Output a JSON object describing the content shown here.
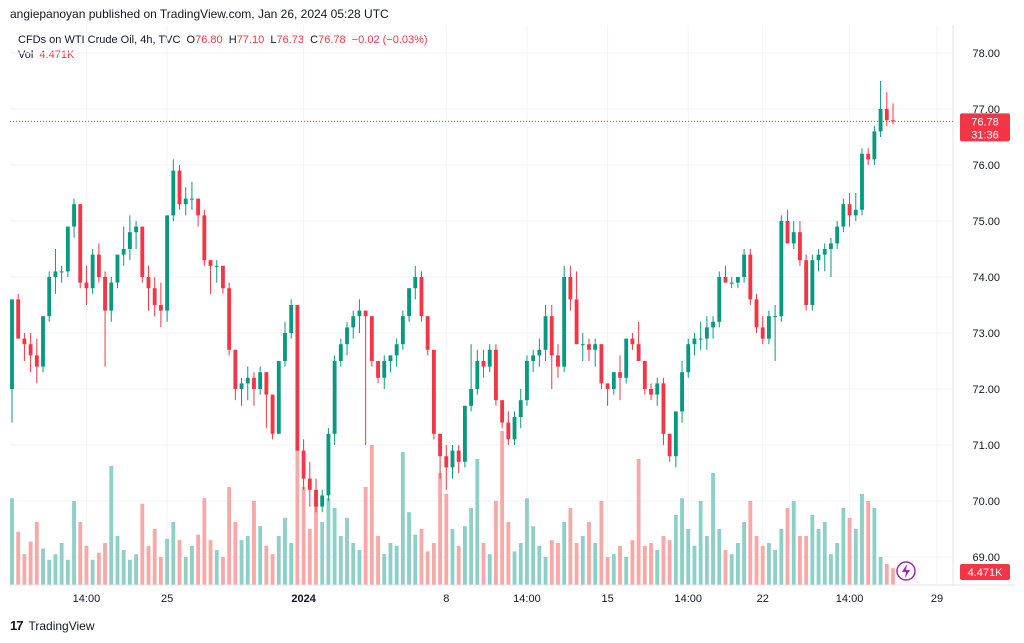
{
  "header": {
    "published": "angiepanoyan published on TradingView.com, Jan 26, 2024 05:28 UTC"
  },
  "legend": {
    "symbol": "CFDs on WTI Crude Oil, 4h, TVC",
    "o_label": "O",
    "o_value": "76.80",
    "h_label": "H",
    "h_value": "77.10",
    "l_label": "L",
    "l_value": "76.73",
    "c_label": "C",
    "c_value": "76.78",
    "change": "−0.02 (−0.03%)",
    "vol_label": "Vol",
    "vol_value": "4.471K"
  },
  "footer": {
    "brand": "TradingView"
  },
  "colors": {
    "up": "#089981",
    "down": "#f23645",
    "upVol": "#8ed0c7",
    "downVol": "#f7a9a7",
    "grid": "#f0f3fa"
  },
  "chart_data": {
    "type": "candlestick",
    "title": "CFDs on WTI Crude Oil, 4h, TVC",
    "ylim": [
      68.5,
      78.5
    ],
    "y_ticks": [
      "78.00",
      "77.00",
      "76.00",
      "75.00",
      "74.00",
      "73.00",
      "72.00",
      "71.00",
      "70.00",
      "69.00"
    ],
    "x_ticks": [
      "14:00",
      "25",
      "2024",
      "8",
      "14:00",
      "15",
      "14:00",
      "22",
      "14:00",
      "29"
    ],
    "last_price": "76.78",
    "countdown": "31:36",
    "volume_label": "4.471K",
    "candles": [
      [
        72.0,
        73.6,
        71.4,
        73.6,
        0.62
      ],
      [
        73.6,
        73.7,
        72.9,
        72.9,
        0.38
      ],
      [
        72.9,
        73.0,
        72.5,
        72.8,
        0.22
      ],
      [
        72.8,
        73.0,
        72.3,
        72.6,
        0.31
      ],
      [
        72.6,
        72.9,
        72.1,
        72.4,
        0.45
      ],
      [
        72.4,
        73.3,
        72.3,
        73.3,
        0.26
      ],
      [
        73.3,
        74.1,
        73.2,
        74.0,
        0.18
      ],
      [
        74.0,
        74.5,
        73.7,
        74.1,
        0.22
      ],
      [
        74.1,
        74.2,
        73.9,
        74.1,
        0.3
      ],
      [
        74.1,
        74.9,
        74.0,
        74.9,
        0.18
      ],
      [
        74.9,
        75.4,
        74.7,
        75.3,
        0.6
      ],
      [
        75.3,
        75.3,
        73.8,
        73.9,
        0.45
      ],
      [
        73.9,
        74.2,
        73.5,
        73.8,
        0.28
      ],
      [
        73.8,
        74.5,
        73.7,
        74.4,
        0.18
      ],
      [
        74.4,
        74.6,
        73.9,
        74.0,
        0.23
      ],
      [
        74.0,
        74.1,
        72.4,
        73.4,
        0.3
      ],
      [
        73.4,
        74.0,
        73.2,
        73.9,
        0.85
      ],
      [
        73.9,
        74.4,
        73.8,
        74.4,
        0.35
      ],
      [
        74.4,
        74.9,
        74.2,
        74.5,
        0.25
      ],
      [
        74.5,
        75.1,
        74.3,
        74.8,
        0.18
      ],
      [
        74.8,
        75.0,
        74.5,
        74.9,
        0.22
      ],
      [
        74.9,
        74.9,
        73.9,
        74.0,
        0.58
      ],
      [
        74.0,
        74.2,
        73.4,
        73.8,
        0.28
      ],
      [
        73.8,
        74.0,
        73.3,
        73.5,
        0.4
      ],
      [
        73.5,
        73.9,
        73.1,
        73.4,
        0.2
      ],
      [
        73.4,
        75.1,
        73.2,
        75.1,
        0.33
      ],
      [
        75.1,
        76.1,
        75.0,
        75.9,
        0.45
      ],
      [
        75.9,
        76.0,
        75.2,
        75.3,
        0.32
      ],
      [
        75.3,
        75.6,
        75.1,
        75.4,
        0.2
      ],
      [
        75.4,
        75.7,
        75.2,
        75.4,
        0.28
      ],
      [
        75.4,
        75.4,
        74.9,
        75.1,
        0.36
      ],
      [
        75.1,
        75.2,
        74.2,
        74.3,
        0.62
      ],
      [
        74.3,
        74.3,
        73.7,
        74.2,
        0.32
      ],
      [
        74.2,
        74.3,
        73.9,
        74.2,
        0.25
      ],
      [
        74.2,
        74.2,
        73.7,
        73.8,
        0.2
      ],
      [
        73.8,
        73.9,
        72.6,
        72.7,
        0.7
      ],
      [
        72.7,
        72.7,
        71.8,
        72.0,
        0.45
      ],
      [
        72.0,
        72.2,
        71.7,
        72.1,
        0.32
      ],
      [
        72.1,
        72.4,
        71.8,
        72.2,
        0.35
      ],
      [
        72.2,
        72.3,
        71.7,
        72.0,
        0.6
      ],
      [
        72.0,
        72.4,
        71.9,
        72.3,
        0.42
      ],
      [
        72.3,
        72.3,
        71.3,
        71.9,
        0.28
      ],
      [
        71.9,
        71.9,
        71.1,
        71.2,
        0.22
      ],
      [
        71.2,
        72.5,
        71.2,
        72.5,
        0.35
      ],
      [
        72.5,
        73.2,
        72.4,
        73.0,
        0.48
      ],
      [
        73.0,
        73.6,
        72.9,
        73.5,
        0.3
      ],
      [
        73.5,
        73.5,
        70.9,
        70.9,
        1.0
      ],
      [
        70.9,
        71.1,
        70.2,
        70.4,
        0.7
      ],
      [
        70.4,
        70.7,
        69.9,
        70.2,
        0.4
      ],
      [
        70.2,
        70.4,
        69.8,
        69.9,
        0.6
      ],
      [
        69.9,
        70.2,
        69.8,
        70.1,
        0.45
      ],
      [
        70.1,
        71.3,
        70.0,
        71.2,
        0.62
      ],
      [
        71.2,
        72.6,
        71.0,
        72.5,
        0.55
      ],
      [
        72.5,
        72.9,
        72.4,
        72.8,
        0.35
      ],
      [
        72.8,
        73.2,
        72.6,
        73.1,
        0.48
      ],
      [
        73.1,
        73.4,
        72.9,
        73.3,
        0.3
      ],
      [
        73.3,
        73.6,
        73.0,
        73.4,
        0.25
      ],
      [
        73.4,
        73.4,
        71.0,
        73.3,
        0.7
      ],
      [
        73.3,
        73.3,
        72.4,
        72.5,
        1.0
      ],
      [
        72.5,
        72.5,
        72.1,
        72.2,
        0.35
      ],
      [
        72.2,
        72.6,
        72.0,
        72.5,
        0.22
      ],
      [
        72.5,
        72.6,
        72.3,
        72.6,
        0.3
      ],
      [
        72.6,
        72.9,
        72.4,
        72.8,
        0.28
      ],
      [
        72.8,
        73.4,
        72.7,
        73.3,
        0.95
      ],
      [
        73.3,
        73.8,
        73.2,
        73.8,
        0.52
      ],
      [
        73.8,
        74.2,
        73.6,
        74.0,
        0.36
      ],
      [
        74.0,
        74.1,
        73.2,
        73.3,
        0.4
      ],
      [
        73.3,
        73.3,
        72.6,
        72.7,
        0.24
      ],
      [
        72.7,
        72.7,
        71.1,
        71.2,
        0.3
      ],
      [
        71.2,
        71.2,
        70.4,
        70.8,
        0.8
      ],
      [
        70.8,
        71.0,
        70.2,
        70.6,
        0.65
      ],
      [
        70.6,
        71.0,
        70.4,
        70.9,
        0.4
      ],
      [
        70.9,
        71.0,
        70.5,
        70.7,
        0.28
      ],
      [
        70.7,
        71.7,
        70.6,
        71.7,
        0.42
      ],
      [
        71.7,
        72.8,
        71.6,
        72.0,
        0.55
      ],
      [
        72.0,
        72.7,
        71.9,
        72.5,
        0.9
      ],
      [
        72.5,
        72.7,
        72.2,
        72.4,
        0.3
      ],
      [
        72.4,
        72.8,
        72.3,
        72.7,
        0.22
      ],
      [
        72.7,
        72.8,
        71.7,
        71.8,
        0.6
      ],
      [
        71.8,
        71.8,
        71.3,
        71.4,
        1.1
      ],
      [
        71.4,
        71.6,
        71.0,
        71.1,
        0.45
      ],
      [
        71.1,
        71.6,
        71.0,
        71.5,
        0.24
      ],
      [
        71.5,
        72.0,
        71.3,
        71.8,
        0.3
      ],
      [
        71.8,
        72.6,
        71.7,
        72.5,
        0.62
      ],
      [
        72.5,
        72.7,
        72.3,
        72.6,
        0.42
      ],
      [
        72.6,
        72.9,
        72.4,
        72.7,
        0.28
      ],
      [
        72.7,
        73.5,
        72.5,
        73.3,
        0.2
      ],
      [
        73.3,
        73.5,
        72.0,
        72.6,
        0.32
      ],
      [
        72.6,
        72.8,
        72.2,
        72.4,
        0.3
      ],
      [
        72.4,
        74.2,
        72.3,
        74.0,
        0.45
      ],
      [
        74.0,
        74.2,
        73.4,
        73.6,
        0.55
      ],
      [
        73.6,
        74.1,
        72.8,
        72.8,
        0.3
      ],
      [
        72.8,
        73.0,
        72.5,
        72.8,
        0.35
      ],
      [
        72.8,
        72.9,
        72.5,
        72.7,
        0.45
      ],
      [
        72.7,
        72.9,
        72.4,
        72.8,
        0.3
      ],
      [
        72.8,
        72.8,
        72.0,
        72.1,
        0.6
      ],
      [
        72.1,
        72.1,
        71.7,
        72.0,
        0.2
      ],
      [
        72.0,
        72.3,
        71.9,
        72.3,
        0.22
      ],
      [
        72.3,
        72.6,
        71.8,
        72.2,
        0.28
      ],
      [
        72.2,
        72.9,
        72.1,
        72.9,
        0.2
      ],
      [
        72.9,
        73.0,
        72.7,
        72.8,
        0.32
      ],
      [
        72.8,
        73.2,
        72.5,
        72.5,
        0.9
      ],
      [
        72.5,
        72.5,
        71.9,
        72.0,
        0.28
      ],
      [
        72.0,
        72.1,
        71.8,
        71.9,
        0.3
      ],
      [
        71.9,
        72.2,
        71.7,
        72.1,
        0.25
      ],
      [
        72.1,
        72.2,
        71.0,
        71.2,
        0.35
      ],
      [
        71.2,
        71.2,
        70.7,
        70.8,
        0.32
      ],
      [
        70.8,
        71.6,
        70.6,
        71.6,
        0.5
      ],
      [
        71.6,
        72.5,
        71.4,
        72.3,
        0.62
      ],
      [
        72.3,
        72.9,
        72.2,
        72.8,
        0.4
      ],
      [
        72.8,
        73.0,
        72.6,
        72.9,
        0.28
      ],
      [
        72.9,
        73.2,
        72.7,
        72.9,
        0.6
      ],
      [
        72.9,
        73.3,
        72.7,
        73.1,
        0.35
      ],
      [
        73.1,
        73.3,
        72.9,
        73.2,
        0.8
      ],
      [
        73.2,
        74.1,
        73.1,
        74.0,
        0.4
      ],
      [
        74.0,
        74.2,
        73.9,
        73.9,
        0.25
      ],
      [
        73.9,
        74.0,
        73.8,
        73.9,
        0.22
      ],
      [
        73.9,
        74.0,
        73.8,
        74.0,
        0.3
      ],
      [
        74.0,
        74.5,
        73.9,
        74.4,
        0.45
      ],
      [
        74.4,
        74.5,
        73.5,
        73.6,
        0.6
      ],
      [
        73.6,
        73.7,
        73.0,
        73.1,
        0.35
      ],
      [
        73.1,
        73.3,
        72.8,
        72.9,
        0.28
      ],
      [
        72.9,
        73.4,
        72.8,
        73.3,
        0.3
      ],
      [
        73.3,
        73.5,
        72.5,
        73.3,
        0.25
      ],
      [
        73.3,
        75.1,
        73.2,
        75.0,
        0.4
      ],
      [
        75.0,
        75.2,
        74.6,
        74.6,
        0.55
      ],
      [
        74.6,
        75.0,
        74.5,
        74.8,
        0.6
      ],
      [
        74.8,
        75.0,
        74.2,
        74.3,
        0.35
      ],
      [
        74.3,
        74.4,
        73.4,
        73.5,
        0.35
      ],
      [
        73.5,
        74.4,
        73.4,
        74.3,
        0.5
      ],
      [
        74.3,
        74.5,
        74.1,
        74.4,
        0.4
      ],
      [
        74.4,
        74.6,
        74.1,
        74.5,
        0.45
      ],
      [
        74.5,
        74.7,
        74.0,
        74.6,
        0.22
      ],
      [
        74.6,
        75.0,
        74.5,
        74.9,
        0.3
      ],
      [
        74.9,
        75.4,
        74.8,
        75.3,
        0.55
      ],
      [
        75.3,
        75.5,
        74.9,
        75.1,
        0.48
      ],
      [
        75.1,
        75.5,
        75.0,
        75.2,
        0.4
      ],
      [
        75.2,
        76.3,
        75.1,
        76.2,
        0.65
      ],
      [
        76.2,
        76.3,
        76.0,
        76.1,
        0.6
      ],
      [
        76.1,
        76.7,
        76.0,
        76.6,
        0.55
      ],
      [
        76.6,
        77.5,
        76.5,
        77.0,
        0.2
      ],
      [
        77.0,
        77.3,
        76.7,
        76.8,
        0.15
      ],
      [
        76.8,
        77.1,
        76.73,
        76.78,
        0.12
      ]
    ]
  }
}
